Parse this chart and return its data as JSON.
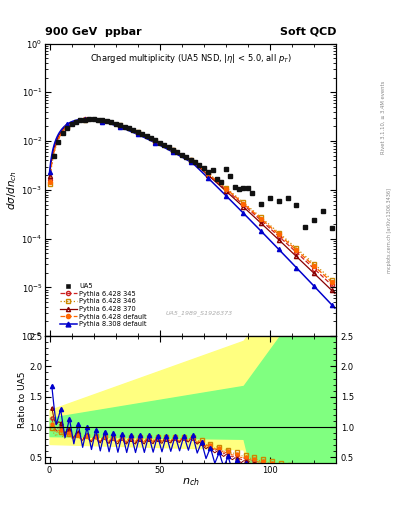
{
  "title_left": "900 GeV  ppbar",
  "title_right": "Soft QCD",
  "plot_title": "Charged multiplicity (UA5 NSD, |#eta| < 5.0, all p_{T})",
  "ylabel_main": "d#sigma/dn_{ch}",
  "ylabel_ratio": "Ratio to UA5",
  "xlabel": "n_{ch}",
  "right_label_top": "Rivet 3.1.10, ≥ 3.4M events",
  "right_label_bottom": "mcplots.cern.ch [arXiv:1306.3436]",
  "dataset_label": "UA5_1989_S1926373",
  "legend_entries": [
    "UA5",
    "Pythia 6.428 345",
    "Pythia 6.428 346",
    "Pythia 6.428 370",
    "Pythia 6.428 default",
    "Pythia 8.308 default"
  ],
  "colors": {
    "UA5": "#111111",
    "p6_345": "#cc2222",
    "p6_346": "#cc8800",
    "p6_370": "#880000",
    "p6_default": "#ff6600",
    "p8_default": "#0000cc"
  },
  "background_color": "#ffffff",
  "ratio_band_yellow": "#ffff80",
  "ratio_band_green": "#80ff80",
  "ylim_main_log": [
    -6,
    0
  ],
  "ylim_ratio": [
    0.4,
    2.5
  ],
  "xlim": [
    -2,
    130
  ],
  "figure_width": 3.93,
  "figure_height": 5.12,
  "dpi": 100
}
